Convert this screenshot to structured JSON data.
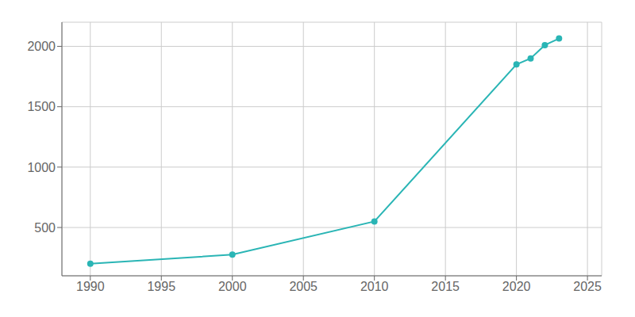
{
  "chart_data": {
    "type": "line",
    "x": [
      1990,
      2000,
      2010,
      2020,
      2021,
      2022,
      2023
    ],
    "values": [
      200,
      275,
      550,
      1850,
      1900,
      2010,
      2065
    ],
    "color": "#2ab5b5",
    "marker": "circle",
    "xlim": [
      1988,
      2026
    ],
    "ylim": [
      100,
      2200
    ],
    "xticks": [
      1990,
      1995,
      2000,
      2005,
      2010,
      2015,
      2020,
      2025
    ],
    "yticks": [
      500,
      1000,
      1500,
      2000
    ],
    "grid": true
  }
}
